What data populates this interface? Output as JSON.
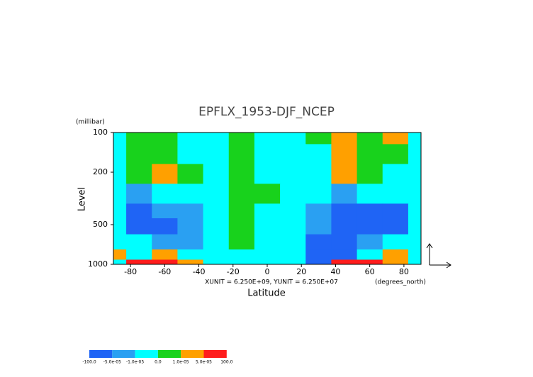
{
  "chart_data": {
    "type": "contour",
    "title": "EPFLX_1953-DJF_NCEP",
    "y_units": "(millibar)",
    "y_label": "Level",
    "x_label": "Latitude",
    "x_units": "(degrees_north)",
    "annotation": "XUNIT = 6.250E+09, YUNIT = 6.250E+07",
    "x": [
      -90,
      -75,
      -60,
      -45,
      -30,
      -15,
      0,
      15,
      30,
      45,
      60,
      75,
      90
    ],
    "y": [
      100,
      150,
      200,
      300,
      400,
      500,
      700,
      850,
      1000
    ],
    "values": [
      [
        -5e-06,
        5e-06,
        5e-06,
        -5e-06,
        -5e-06,
        5e-06,
        -5e-06,
        -5e-06,
        5e-06,
        3e-05,
        5e-06,
        3e-05,
        -5e-06
      ],
      [
        -5e-06,
        5e-06,
        5e-06,
        -5e-06,
        -5e-06,
        5e-06,
        -5e-06,
        -5e-06,
        -5e-06,
        3e-05,
        5e-06,
        5e-06,
        -5e-06
      ],
      [
        -5e-06,
        5e-06,
        3e-05,
        5e-06,
        -5e-06,
        5e-06,
        -5e-06,
        -5e-06,
        -5e-06,
        3e-05,
        5e-06,
        -5e-06,
        -5e-06
      ],
      [
        -5e-06,
        -3e-05,
        -5e-06,
        -5e-06,
        -5e-06,
        5e-06,
        5e-06,
        -5e-06,
        -5e-06,
        -3e-05,
        -5e-06,
        -5e-06,
        -5e-06
      ],
      [
        -5e-06,
        -7e-05,
        -3e-05,
        -3e-05,
        -5e-06,
        5e-06,
        -5e-06,
        -5e-06,
        -3e-05,
        -7e-05,
        -7e-05,
        -7e-05,
        -5e-06
      ],
      [
        -5e-06,
        -7e-05,
        -7e-05,
        -3e-05,
        -5e-06,
        5e-06,
        -5e-06,
        -5e-06,
        -3e-05,
        -7e-05,
        -7e-05,
        -7e-05,
        -5e-06
      ],
      [
        -5e-06,
        -5e-06,
        -3e-05,
        -3e-05,
        -5e-06,
        5e-06,
        -5e-06,
        -5e-06,
        -7e-05,
        -7e-05,
        -3e-05,
        -5e-06,
        -5e-06
      ],
      [
        3e-05,
        -5e-06,
        3e-05,
        -5e-06,
        -5e-06,
        -5e-06,
        -5e-06,
        -5e-06,
        -7e-05,
        -7e-05,
        -5e-06,
        3e-05,
        -5e-06
      ],
      [
        -5e-06,
        7e-05,
        7e-05,
        3e-05,
        -5e-06,
        -5e-06,
        -5e-06,
        -5e-06,
        -7e-05,
        7e-05,
        7e-05,
        3e-05,
        -5e-06
      ]
    ],
    "xlim": [
      -90,
      90
    ],
    "xticks": [
      -80,
      -60,
      -40,
      -20,
      0,
      20,
      40,
      60,
      80
    ],
    "ylim": [
      100,
      1000
    ],
    "yticks": [
      100,
      200,
      500,
      1000
    ],
    "y_log": true,
    "y_reversed": true,
    "levels": [
      {
        "value": -100,
        "label": "-100.0"
      },
      {
        "value": -5e-05,
        "label": "-5.0e-05"
      },
      {
        "value": -1e-05,
        "label": "-1.0e-05"
      },
      {
        "value": 0,
        "label": "0.0"
      },
      {
        "value": 1e-05,
        "label": "1.0e-05"
      },
      {
        "value": 5e-05,
        "label": "5.0e-05"
      },
      {
        "value": 100,
        "label": "100.0"
      }
    ],
    "colors": [
      "#1f64f5",
      "#2aa0f2",
      "#00ffff",
      "#18d21c",
      "#ffa000",
      "#ff1c1c"
    ]
  }
}
